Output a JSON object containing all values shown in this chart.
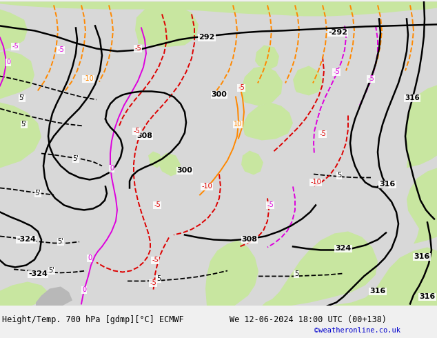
{
  "title_left": "Height/Temp. 700 hPa [gdmp][°C] ECMWF",
  "title_right": "We 12-06-2024 18:00 UTC (00+138)",
  "credit": "©weatheronline.co.uk",
  "credit_color": "#0000cc",
  "bottom_bar_color": "#f0f0f0",
  "sea_color": "#d8d8d8",
  "land_color": "#c8e6a0",
  "gray_land_color": "#b8b8b8",
  "black": "#000000",
  "magenta": "#dd00dd",
  "red": "#dd0000",
  "orange": "#ff8800"
}
